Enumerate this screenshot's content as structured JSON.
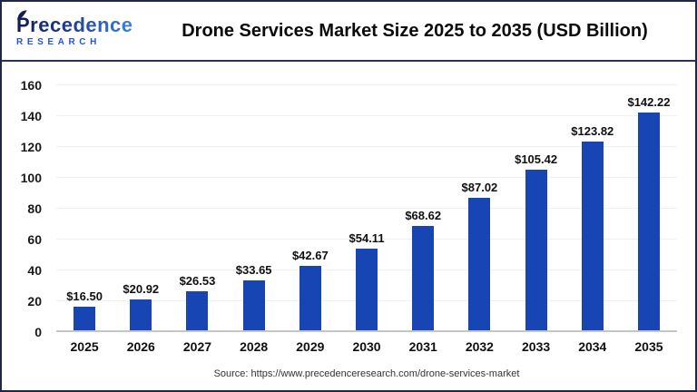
{
  "header": {
    "logo_name": "Precedence",
    "logo_sub": "RESEARCH"
  },
  "chart_data": {
    "type": "bar",
    "title": "Drone Services Market Size 2025 to 2035 (USD Billion)",
    "categories": [
      "2025",
      "2026",
      "2027",
      "2028",
      "2029",
      "2030",
      "2031",
      "2032",
      "2033",
      "2034",
      "2035"
    ],
    "values": [
      16.5,
      20.92,
      26.53,
      33.65,
      42.67,
      54.11,
      68.62,
      87.02,
      105.42,
      123.82,
      142.22
    ],
    "bar_labels": [
      "$16.50",
      "$20.92",
      "$26.53",
      "$33.65",
      "$42.67",
      "$54.11",
      "$68.62",
      "$87.02",
      "$105.42",
      "$123.82",
      "$142.22"
    ],
    "xlabel": "",
    "ylabel": "",
    "ylim": [
      0,
      160
    ],
    "yticks": [
      0,
      20,
      40,
      60,
      80,
      100,
      120,
      140,
      160
    ],
    "grid": true,
    "legend": false
  },
  "footer": {
    "source": "Source: https://www.precedenceresearch.com/drone-services-market"
  },
  "colors": {
    "bar": "#1746B4",
    "gridline": "#f0f0f0",
    "axis_line": "#c6c6c6",
    "header_rule": "#2b3154",
    "outer_border": "#20254a",
    "logo_dark": "#131c4e",
    "logo_light": "#3b82e8",
    "research_blue": "#2457d6",
    "title_text": "#0a0a0a"
  }
}
